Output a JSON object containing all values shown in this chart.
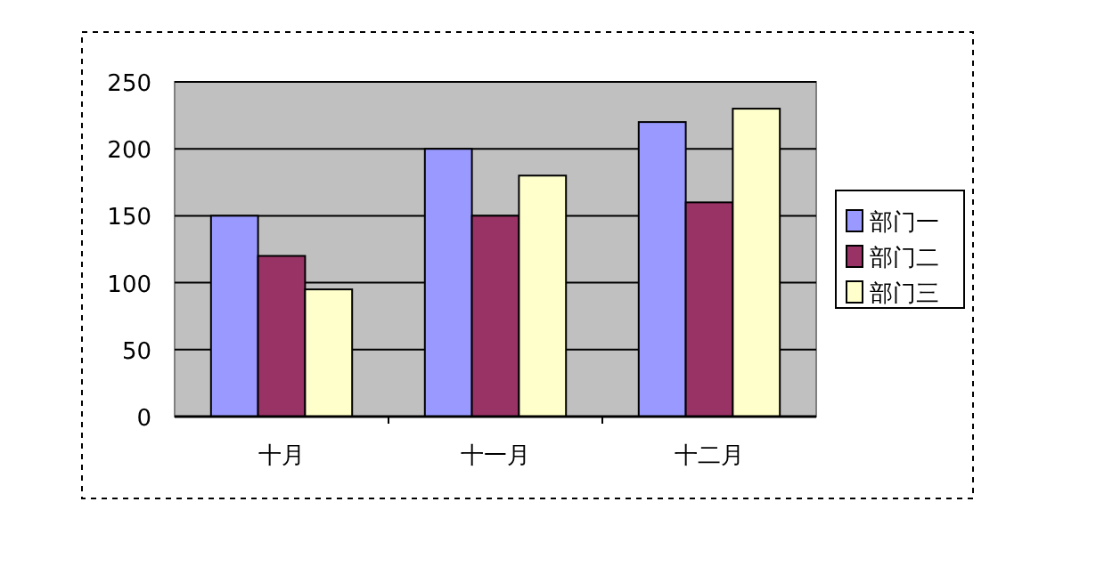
{
  "chart_data": {
    "type": "bar",
    "categories": [
      "十月",
      "十一月",
      "十二月"
    ],
    "series": [
      {
        "name": "部门一",
        "color": "#9999ff",
        "values": [
          150,
          200,
          220
        ]
      },
      {
        "name": "部门二",
        "color": "#993366",
        "values": [
          120,
          150,
          160
        ]
      },
      {
        "name": "部门三",
        "color": "#ffffcc",
        "values": [
          95,
          180,
          230
        ]
      }
    ],
    "ylim": [
      0,
      250
    ],
    "yticks": [
      0,
      50,
      100,
      150,
      200,
      250
    ],
    "grid": "y",
    "legend": "right"
  }
}
